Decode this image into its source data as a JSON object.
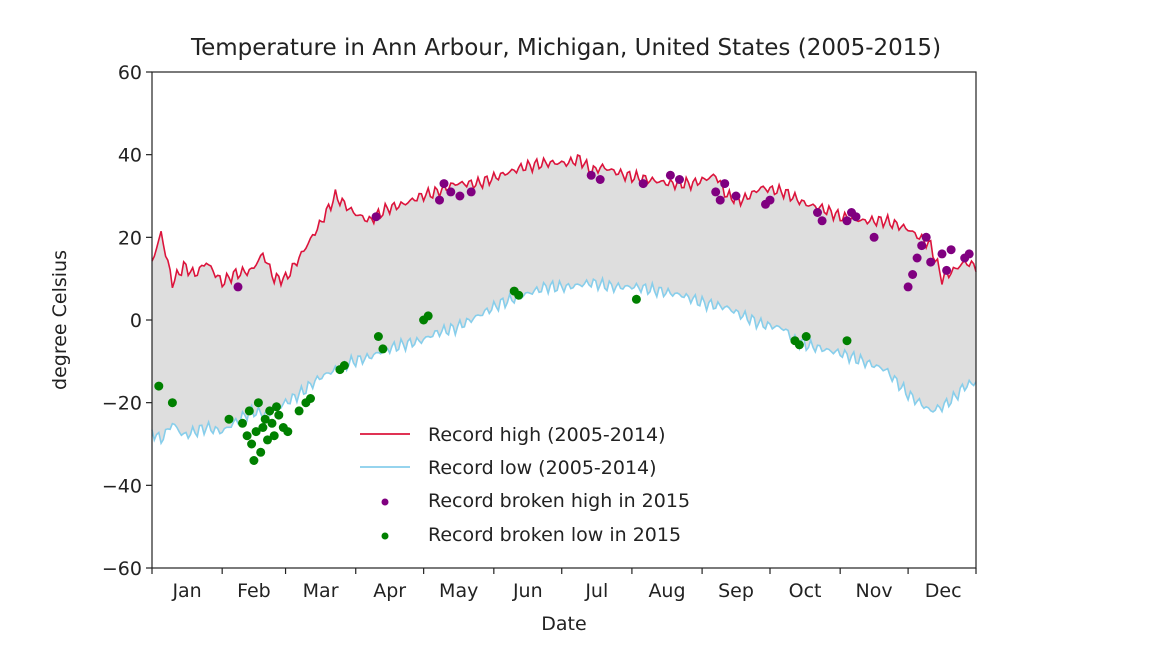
{
  "chart_data": {
    "type": "line",
    "title": "Temperature in Ann Arbour, Michigan, United States (2005-2015)",
    "xlabel": "Date",
    "ylabel": "degree Celsius",
    "ylim": [
      -60,
      60
    ],
    "yticks": [
      {
        "value": 60,
        "label": "60"
      },
      {
        "value": 40,
        "label": "40"
      },
      {
        "value": 20,
        "label": "20"
      },
      {
        "value": 0,
        "label": "0"
      },
      {
        "value": -20,
        "label": "−20"
      },
      {
        "value": -40,
        "label": "−40"
      },
      {
        "value": -60,
        "label": "−60"
      }
    ],
    "months": [
      "Jan",
      "Feb",
      "Mar",
      "Apr",
      "May",
      "Jun",
      "Jul",
      "Aug",
      "Sep",
      "Oct",
      "Nov",
      "Dec"
    ],
    "grid": false,
    "legend_position": "lower-center",
    "series": [
      {
        "name": "Record high (2005-2014)",
        "kind": "line",
        "color": "#dc143c",
        "x_day_of_year": [
          1,
          5,
          10,
          15,
          20,
          25,
          32,
          37,
          45,
          50,
          55,
          60,
          66,
          75,
          82,
          90,
          97,
          105,
          112,
          120,
          127,
          135,
          145,
          155,
          165,
          175,
          185,
          190,
          195,
          200,
          210,
          220,
          230,
          240,
          250,
          255,
          262,
          270,
          280,
          290,
          297,
          305,
          315,
          325,
          335,
          340,
          345,
          350,
          355,
          360,
          365
        ],
        "y": [
          14,
          21,
          9,
          13,
          11,
          14,
          9,
          11,
          12,
          16,
          10,
          10,
          15,
          23,
          30,
          26,
          24,
          27,
          28,
          30,
          31,
          33,
          33,
          35,
          37,
          38,
          38,
          39,
          36,
          37,
          35,
          34,
          33,
          33,
          35,
          30,
          29,
          32,
          31,
          28,
          27,
          25,
          24,
          24,
          22,
          20,
          18,
          10,
          12,
          14,
          13
        ]
      },
      {
        "name": "Record low (2005-2014)",
        "kind": "line",
        "color": "#87ceeb",
        "x_day_of_year": [
          1,
          5,
          10,
          15,
          20,
          25,
          32,
          37,
          45,
          52,
          60,
          66,
          75,
          82,
          90,
          97,
          105,
          112,
          120,
          127,
          135,
          145,
          155,
          165,
          175,
          185,
          195,
          205,
          215,
          225,
          235,
          245,
          255,
          262,
          270,
          280,
          285,
          290,
          297,
          305,
          315,
          325,
          335,
          340,
          345,
          350,
          355,
          360,
          365
        ],
        "y": [
          -27,
          -29,
          -25,
          -28,
          -27,
          -26,
          -27,
          -25,
          -22,
          -23,
          -20,
          -18,
          -14,
          -12,
          -10,
          -9,
          -7,
          -6,
          -5,
          -3,
          -2,
          1,
          4,
          6,
          8,
          8,
          9,
          8,
          8,
          7,
          6,
          4,
          3,
          1,
          -1,
          -2,
          -5,
          -6,
          -7,
          -8,
          -10,
          -12,
          -18,
          -20,
          -22,
          -21,
          -19,
          -16,
          -15
        ]
      },
      {
        "name": "Record broken high in 2015",
        "kind": "scatter",
        "color": "#800080",
        "x_day_of_year": [
          39,
          100,
          128,
          130,
          133,
          137,
          142,
          195,
          199,
          218,
          230,
          234,
          250,
          252,
          254,
          259,
          272,
          274,
          295,
          297,
          308,
          310,
          312,
          320,
          335,
          337,
          339,
          341,
          343,
          345,
          350,
          352,
          354,
          360,
          362
        ],
        "y": [
          8,
          25,
          29,
          33,
          31,
          30,
          31,
          35,
          34,
          33,
          35,
          34,
          31,
          29,
          33,
          30,
          28,
          29,
          26,
          24,
          24,
          26,
          25,
          20,
          8,
          11,
          15,
          18,
          20,
          14,
          16,
          12,
          17,
          15,
          16
        ]
      },
      {
        "name": "Record broken low in 2015",
        "kind": "scatter",
        "color": "#008000",
        "x_day_of_year": [
          4,
          10,
          35,
          41,
          43,
          44,
          45,
          46,
          47,
          48,
          49,
          50,
          51,
          52,
          53,
          54,
          55,
          56,
          57,
          59,
          61,
          66,
          69,
          71,
          84,
          86,
          101,
          103,
          121,
          123,
          161,
          163,
          215,
          285,
          287,
          290,
          308
        ],
        "y": [
          -16,
          -20,
          -24,
          -25,
          -28,
          -22,
          -30,
          -34,
          -27,
          -20,
          -32,
          -26,
          -24,
          -29,
          -22,
          -25,
          -28,
          -21,
          -23,
          -26,
          -27,
          -22,
          -20,
          -19,
          -12,
          -11,
          -4,
          -7,
          0,
          1,
          7,
          6,
          5,
          -5,
          -6,
          -4,
          -5
        ]
      }
    ]
  }
}
